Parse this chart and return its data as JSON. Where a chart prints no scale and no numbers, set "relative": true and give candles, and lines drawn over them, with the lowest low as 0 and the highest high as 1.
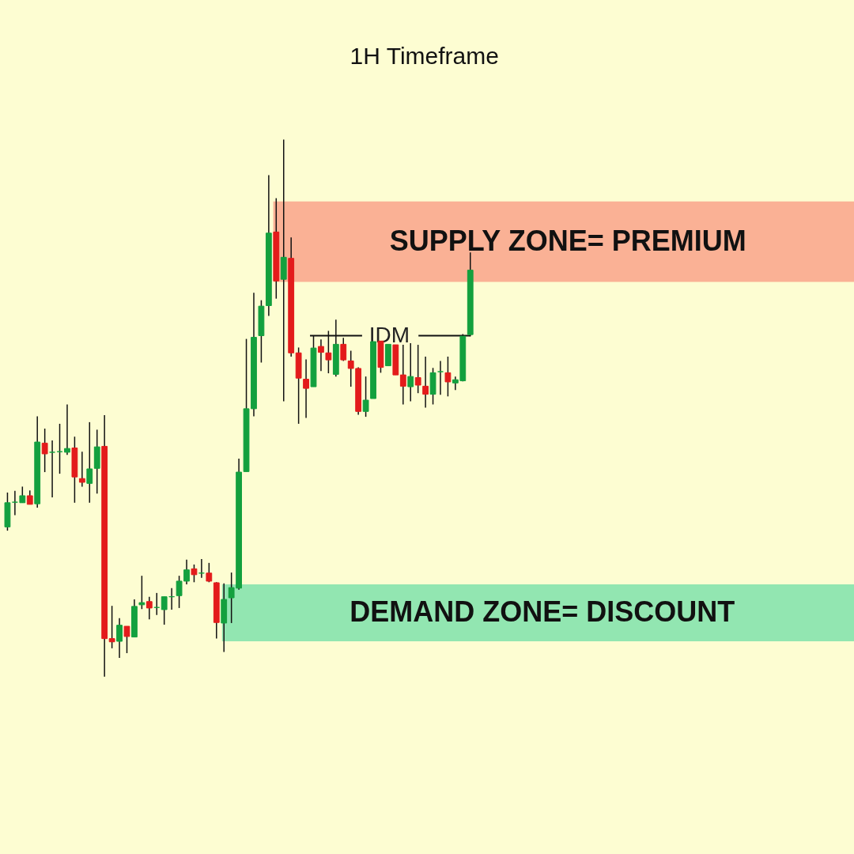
{
  "chart_data": {
    "type": "candlestick",
    "title": "1H Timeframe",
    "relative": true,
    "categories": [
      null,
      null,
      null,
      null,
      null,
      null,
      null,
      null,
      null,
      null,
      null,
      null,
      null,
      null,
      null,
      null,
      null,
      null,
      null,
      null,
      null,
      null,
      null,
      null,
      null,
      null,
      null,
      null,
      null,
      null,
      null,
      null,
      null,
      null,
      null,
      null,
      null,
      null,
      null,
      null,
      null,
      null,
      null,
      null,
      null,
      null,
      null,
      null,
      null,
      null,
      null,
      null,
      null,
      null,
      null,
      null,
      null,
      null,
      null,
      null,
      null,
      null,
      null
    ],
    "ohlc": [
      [
        0.279,
        0.343,
        0.272,
        0.324
      ],
      [
        0.325,
        0.346,
        0.301,
        0.325
      ],
      [
        0.324,
        0.354,
        0.324,
        0.337
      ],
      [
        0.337,
        0.347,
        0.321,
        0.321
      ],
      [
        0.322,
        0.485,
        0.315,
        0.437
      ],
      [
        0.435,
        0.462,
        0.381,
        0.415
      ],
      [
        0.418,
        0.44,
        0.334,
        0.418
      ],
      [
        0.419,
        0.471,
        0.378,
        0.419
      ],
      [
        0.418,
        0.507,
        0.413,
        0.425
      ],
      [
        0.426,
        0.447,
        0.324,
        0.372
      ],
      [
        0.369,
        0.419,
        0.354,
        0.362
      ],
      [
        0.36,
        0.474,
        0.324,
        0.387
      ],
      [
        0.388,
        0.46,
        0.341,
        0.428
      ],
      [
        0.429,
        0.487,
        0.0,
        0.071
      ],
      [
        0.071,
        0.132,
        0.053,
        0.065
      ],
      [
        0.066,
        0.109,
        0.035,
        0.096
      ],
      [
        0.094,
        0.094,
        0.044,
        0.075
      ],
      [
        0.074,
        0.144,
        0.074,
        0.131
      ],
      [
        0.134,
        0.188,
        0.126,
        0.138
      ],
      [
        0.14,
        0.149,
        0.107,
        0.128
      ],
      [
        0.129,
        0.156,
        0.115,
        0.129
      ],
      [
        0.125,
        0.149,
        0.097,
        0.149
      ],
      [
        0.149,
        0.165,
        0.125,
        0.149
      ],
      [
        0.151,
        0.188,
        0.128,
        0.178
      ],
      [
        0.178,
        0.218,
        0.172,
        0.199
      ],
      [
        0.201,
        0.209,
        0.176,
        0.19
      ],
      [
        0.193,
        0.219,
        0.184,
        0.193
      ],
      [
        0.193,
        0.212,
        0.176,
        0.178
      ],
      [
        0.175,
        0.176,
        0.071,
        0.101
      ],
      [
        0.1,
        0.174,
        0.046,
        0.144
      ],
      [
        0.147,
        0.194,
        0.1,
        0.166
      ],
      [
        0.165,
        0.406,
        0.162,
        0.381
      ],
      [
        0.382,
        0.629,
        0.382,
        0.499
      ],
      [
        0.499,
        0.715,
        0.485,
        0.632
      ],
      [
        0.635,
        0.701,
        0.585,
        0.69
      ],
      [
        0.691,
        0.934,
        0.672,
        0.826
      ],
      [
        0.828,
        0.891,
        0.704,
        0.737
      ],
      [
        0.74,
        1.0,
        0.513,
        0.781
      ],
      [
        0.779,
        0.818,
        0.596,
        0.603
      ],
      [
        0.603,
        0.613,
        0.471,
        0.556
      ],
      [
        0.554,
        0.591,
        0.482,
        0.537
      ],
      [
        0.54,
        0.635,
        0.54,
        0.612
      ],
      [
        0.615,
        0.628,
        0.569,
        0.604
      ],
      [
        0.603,
        0.644,
        0.565,
        0.59
      ],
      [
        0.563,
        0.665,
        0.559,
        0.619
      ],
      [
        0.619,
        0.631,
        0.588,
        0.59
      ],
      [
        0.588,
        0.607,
        0.54,
        0.574
      ],
      [
        0.574,
        0.576,
        0.488,
        0.494
      ],
      [
        0.494,
        0.559,
        0.484,
        0.515
      ],
      [
        0.518,
        0.624,
        0.518,
        0.624
      ],
      [
        0.625,
        0.625,
        0.566,
        0.576
      ],
      [
        0.579,
        0.619,
        0.579,
        0.619
      ],
      [
        0.618,
        0.618,
        0.562,
        0.562
      ],
      [
        0.562,
        0.618,
        0.507,
        0.541
      ],
      [
        0.54,
        0.621,
        0.513,
        0.559
      ],
      [
        0.557,
        0.618,
        0.528,
        0.543
      ],
      [
        0.541,
        0.596,
        0.501,
        0.526
      ],
      [
        0.526,
        0.575,
        0.507,
        0.566
      ],
      [
        0.568,
        0.588,
        0.525,
        0.568
      ],
      [
        0.566,
        0.596,
        0.522,
        0.549
      ],
      [
        0.547,
        0.559,
        0.534,
        0.553
      ],
      [
        0.551,
        0.638,
        0.55,
        0.634
      ],
      [
        0.637,
        0.79,
        0.634,
        0.757
      ]
    ],
    "bands": [
      {
        "axis": "y",
        "from": 0.735,
        "to": 0.885,
        "label": "SUPPLY ZONE= PREMIUM",
        "color": "#f9a98e"
      },
      {
        "axis": "y",
        "from": 0.066,
        "to": 0.172,
        "label": "DEMAND ZONE= DISCOUNT",
        "color": "#86e3ad"
      }
    ],
    "ref_lines": [
      {
        "axis": "y",
        "value": 0.635,
        "label": "IDM"
      }
    ]
  }
}
